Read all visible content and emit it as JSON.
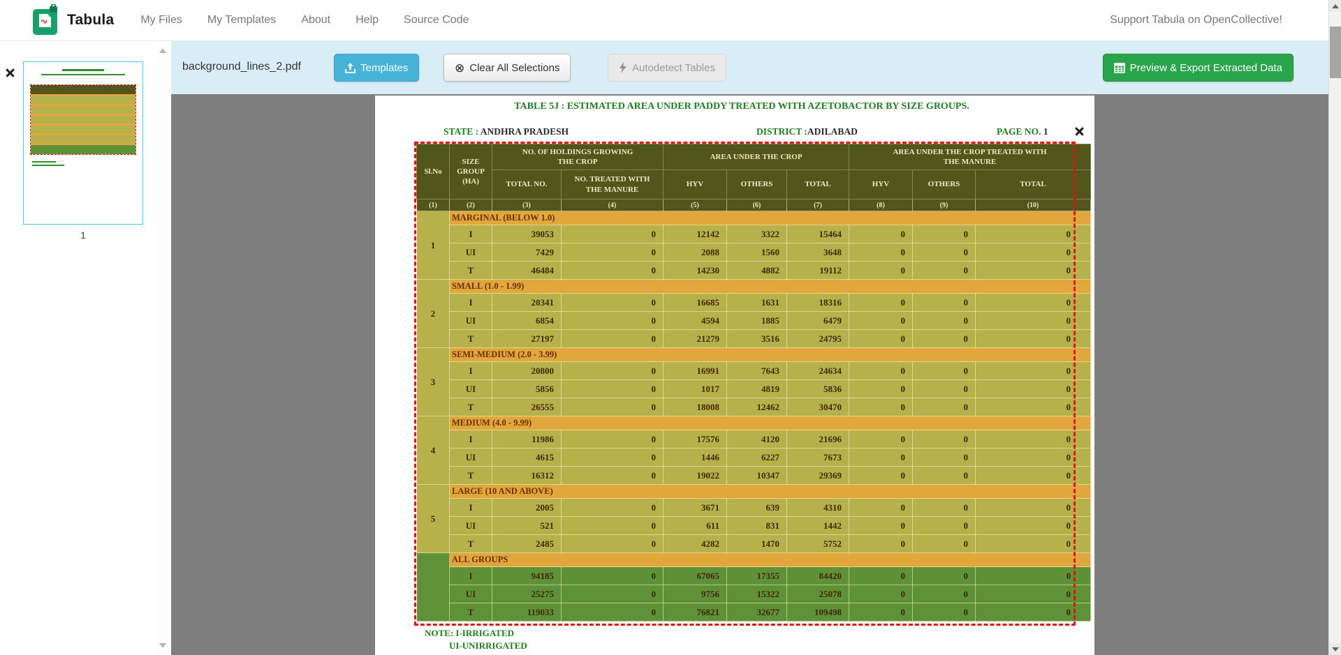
{
  "navbar": {
    "brand": "Tabula",
    "items": [
      {
        "label": "My Files"
      },
      {
        "label": "My Templates"
      },
      {
        "label": "About"
      },
      {
        "label": "Help"
      },
      {
        "label": "Source Code"
      }
    ],
    "support_link": "Support Tabula on OpenCollective!"
  },
  "toolbar": {
    "filename": "background_lines_2.pdf",
    "templates_button": "Templates",
    "clear_selections_button": "Clear All Selections",
    "autodetect_button": "Autodetect Tables",
    "export_button": "Preview & Export Extracted Data"
  },
  "sidebar": {
    "page_number": "1"
  },
  "pdf_page": {
    "title": "TABLE 5J : ESTIMATED AREA UNDER PADDY  TREATED WITH AZETOBACTOR BY SIZE GROUPS.",
    "state_label": "STATE :",
    "state_value": "ANDHRA PRADESH",
    "district_label": "DISTRICT :",
    "district_value": "ADILABAD",
    "page_no_label": "PAGE NO.",
    "page_no_value": "1",
    "note_line1": "NOTE: I-IRRIGATED",
    "note_line2": "UI-UNIRRIGATED"
  },
  "pdf_table": {
    "header": {
      "sl_no": "Sl.No",
      "size_group": "SIZE\nGROUP\n(HA)",
      "group_holdings": "NO. OF HOLDINGS GROWING\nTHE CROP",
      "group_area": "AREA UNDER THE CROP",
      "group_treated": "AREA UNDER THE CROP TREATED WITH\nTHE  MANURE",
      "sub_headers": [
        "TOTAL NO.",
        "NO. TREATED WITH\nTHE  MANURE",
        "HYV",
        "OTHERS",
        "TOTAL",
        "HYV",
        "OTHERS",
        "TOTAL"
      ],
      "col_numbers": [
        "(1)",
        "(2)",
        "(3)",
        "(4)",
        "(5)",
        "(6)",
        "(7)",
        "(8)",
        "(9)",
        "(10)"
      ]
    },
    "groups": [
      {
        "sl": "1",
        "label": "MARGINAL (BELOW 1.0)",
        "green": false,
        "rows": [
          {
            "t": "I",
            "v": [
              39053,
              0,
              12142,
              3322,
              15464,
              0,
              0,
              0
            ]
          },
          {
            "t": "UI",
            "v": [
              7429,
              0,
              2088,
              1560,
              3648,
              0,
              0,
              0
            ]
          },
          {
            "t": "T",
            "v": [
              46484,
              0,
              14230,
              4882,
              19112,
              0,
              0,
              0
            ]
          }
        ]
      },
      {
        "sl": "2",
        "label": "SMALL (1.0 - 1.99)",
        "green": false,
        "rows": [
          {
            "t": "I",
            "v": [
              20341,
              0,
              16685,
              1631,
              18316,
              0,
              0,
              0
            ]
          },
          {
            "t": "UI",
            "v": [
              6854,
              0,
              4594,
              1885,
              6479,
              0,
              0,
              0
            ]
          },
          {
            "t": "T",
            "v": [
              27197,
              0,
              21279,
              3516,
              24795,
              0,
              0,
              0
            ]
          }
        ]
      },
      {
        "sl": "3",
        "label": "SEMI-MEDIUM (2.0 - 3.99)",
        "green": false,
        "rows": [
          {
            "t": "I",
            "v": [
              20800,
              0,
              16991,
              7643,
              24634,
              0,
              0,
              0
            ]
          },
          {
            "t": "UI",
            "v": [
              5856,
              0,
              1017,
              4819,
              5836,
              0,
              0,
              0
            ]
          },
          {
            "t": "T",
            "v": [
              26555,
              0,
              18008,
              12462,
              30470,
              0,
              0,
              0
            ]
          }
        ]
      },
      {
        "sl": "4",
        "label": "MEDIUM (4.0 - 9.99)",
        "green": false,
        "rows": [
          {
            "t": "I",
            "v": [
              11986,
              0,
              17576,
              4120,
              21696,
              0,
              0,
              0
            ]
          },
          {
            "t": "UI",
            "v": [
              4615,
              0,
              1446,
              6227,
              7673,
              0,
              0,
              0
            ]
          },
          {
            "t": "T",
            "v": [
              16312,
              0,
              19022,
              10347,
              29369,
              0,
              0,
              0
            ]
          }
        ]
      },
      {
        "sl": "5",
        "label": "LARGE (10 AND ABOVE)",
        "green": false,
        "rows": [
          {
            "t": "I",
            "v": [
              2005,
              0,
              3671,
              639,
              4310,
              0,
              0,
              0
            ]
          },
          {
            "t": "UI",
            "v": [
              521,
              0,
              611,
              831,
              1442,
              0,
              0,
              0
            ]
          },
          {
            "t": "T",
            "v": [
              2485,
              0,
              4282,
              1470,
              5752,
              0,
              0,
              0
            ]
          }
        ]
      },
      {
        "sl": "",
        "label": "ALL GROUPS",
        "green": true,
        "rows": [
          {
            "t": "I",
            "v": [
              94185,
              0,
              67065,
              17355,
              84420,
              0,
              0,
              0
            ]
          },
          {
            "t": "UI",
            "v": [
              25275,
              0,
              9756,
              15322,
              25078,
              0,
              0,
              0
            ]
          },
          {
            "t": "T",
            "v": [
              119033,
              0,
              76821,
              32677,
              109498,
              0,
              0,
              0
            ]
          }
        ]
      }
    ]
  },
  "colors": {
    "header_olive": "#52561c",
    "body_olive": "#b6b14b",
    "band_amber": "#e1a73d",
    "allgroups_green": "#5f9138",
    "pdf_green": "#1e7d1f",
    "selection_red": "#e01313",
    "toolbar_bg": "#d9edf7",
    "templates_blue": "#46b2d8",
    "export_green": "#28a44a",
    "thumbnail_border": "#49c7da"
  }
}
